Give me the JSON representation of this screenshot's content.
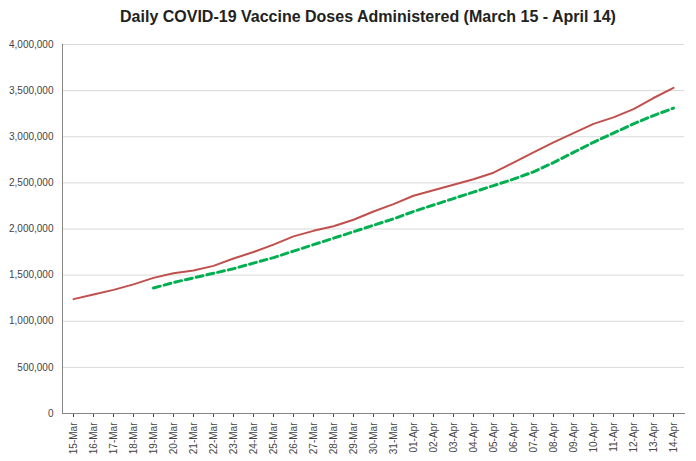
{
  "chart_data": {
    "type": "line",
    "title": "Daily COVID-19 Vaccine Doses Administered (March 15 - April 14)",
    "categories": [
      "15-Mar",
      "16-Mar",
      "17-Mar",
      "18-Mar",
      "19-Mar",
      "20-Mar",
      "21-Mar",
      "22-Mar",
      "23-Mar",
      "24-Mar",
      "25-Mar",
      "26-Mar",
      "27-Mar",
      "28-Mar",
      "29-Mar",
      "30-Mar",
      "31-Mar",
      "01-Apr",
      "02-Apr",
      "03-Apr",
      "04-Apr",
      "05-Apr",
      "06-Apr",
      "07-Apr",
      "08-Apr",
      "09-Apr",
      "10-Apr",
      "11-Apr",
      "12-Apr",
      "13-Apr",
      "14-Apr"
    ],
    "series": [
      {
        "color": "#c0504d",
        "line_style": "solid",
        "values": [
          1240000,
          1290000,
          1340000,
          1400000,
          1470000,
          1520000,
          1550000,
          1600000,
          1680000,
          1750000,
          1830000,
          1920000,
          1980000,
          2030000,
          2100000,
          2190000,
          2270000,
          2360000,
          2420000,
          2480000,
          2540000,
          2610000,
          2720000,
          2830000,
          2940000,
          3040000,
          3140000,
          3210000,
          3300000,
          3420000,
          3530000
        ]
      },
      {
        "color": "#00b050",
        "line_style": "dashed",
        "values": [
          null,
          null,
          null,
          null,
          1360000,
          1420000,
          1470000,
          1520000,
          1570000,
          1630000,
          1690000,
          1760000,
          1830000,
          1900000,
          1970000,
          2040000,
          2110000,
          2190000,
          2260000,
          2330000,
          2400000,
          2470000,
          2540000,
          2620000,
          2720000,
          2830000,
          2940000,
          3040000,
          3140000,
          3230000,
          3310000
        ]
      }
    ],
    "ylim": [
      0,
      4000000
    ],
    "yticks": [
      0,
      {
        "value": 500000,
        "label": "500,000"
      },
      {
        "value": 1000000,
        "label": "1,000,000"
      },
      {
        "value": 1500000,
        "label": "1,500,000"
      },
      {
        "value": 2000000,
        "label": "2,000,000"
      },
      {
        "value": 2500000,
        "label": "2,500,000"
      },
      {
        "value": 3000000,
        "label": "3,000,000"
      },
      {
        "value": 3500000,
        "label": "3,500,000"
      },
      {
        "value": 4000000,
        "label": "4,000,000"
      }
    ],
    "grid": true
  }
}
